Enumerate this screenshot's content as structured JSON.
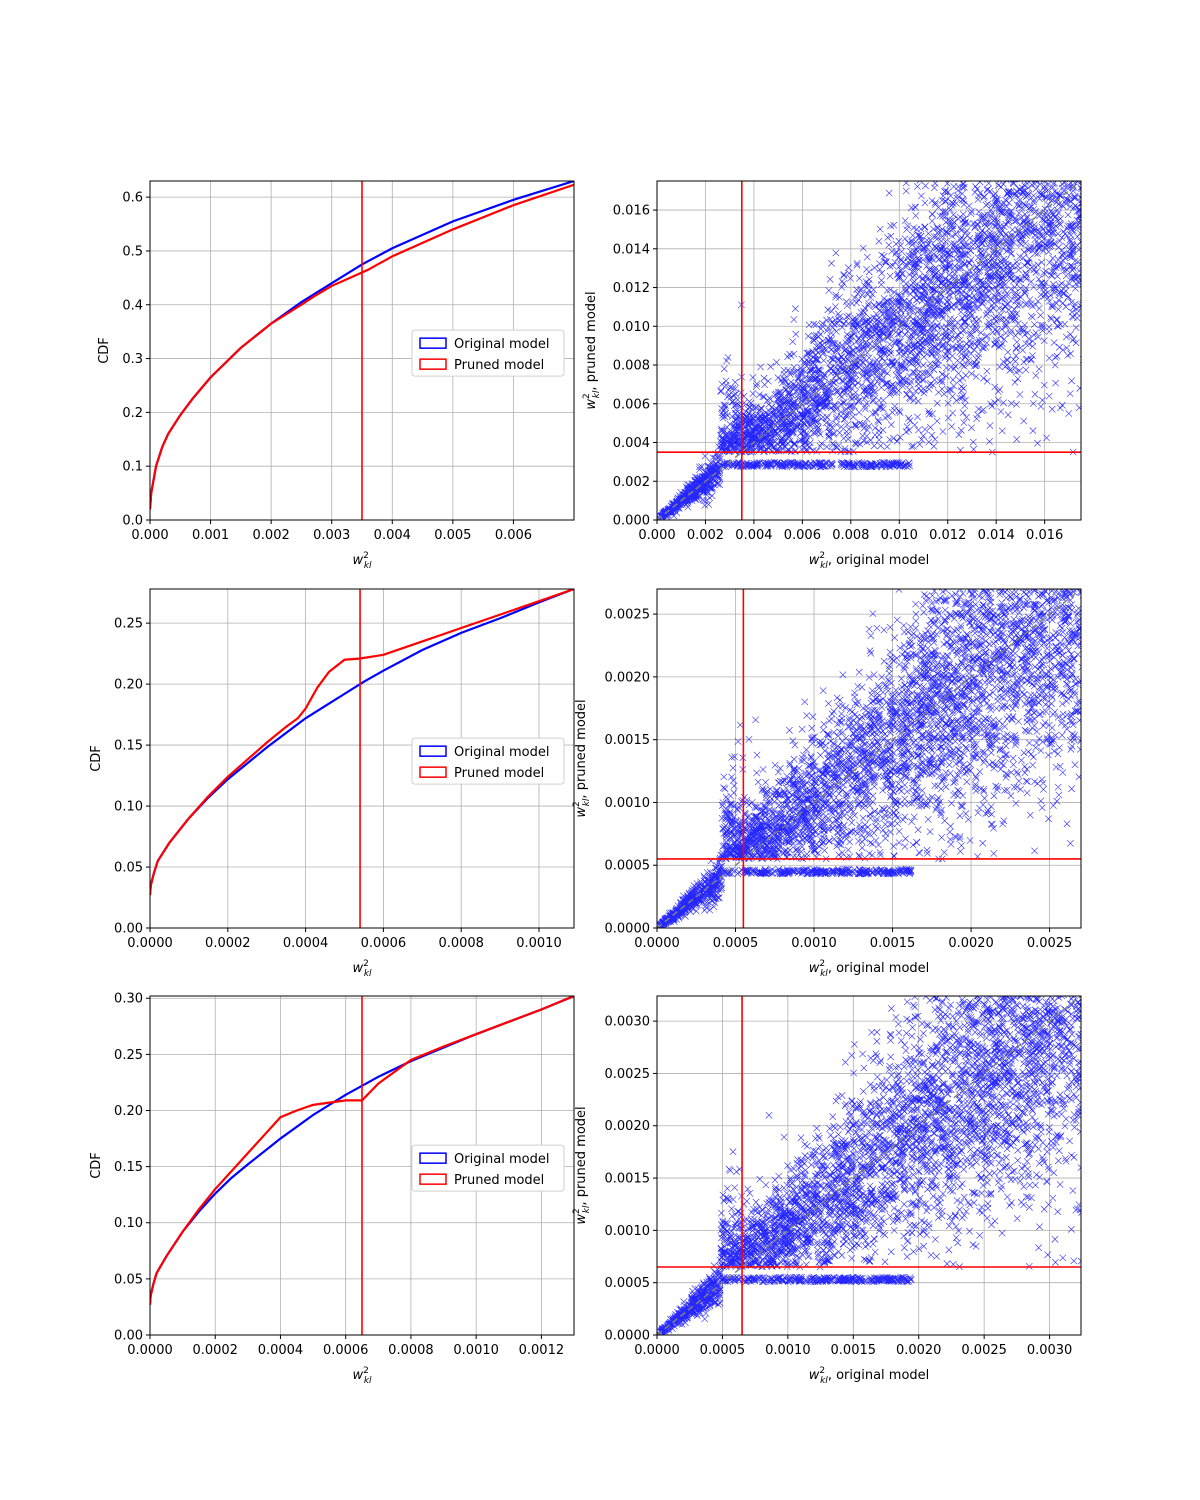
{
  "colors": {
    "original": "#0000ff",
    "pruned": "#ff0000",
    "threshold": "#ff0000",
    "diagonal": "#808080",
    "grid": "#b0b0b0"
  },
  "legend": {
    "original": "Original model",
    "pruned": "Pruned model"
  },
  "labels": {
    "cdf_ylabel": "CDF",
    "cdf_xlabel": "w_{kl}^2",
    "scatter_xlabel": "w_{kl}^2, original model",
    "scatter_ylabel": "w_{kl}^2, pruned model"
  },
  "chart_data": [
    {
      "type": "line",
      "legend_position": "center-right",
      "grid": true,
      "xlim": [
        0,
        0.007
      ],
      "ylim": [
        0,
        0.63
      ],
      "threshold_x": 0.0035,
      "xticks": [
        0.0,
        0.001,
        0.002,
        0.003,
        0.004,
        0.005,
        0.006
      ],
      "yticks": [
        0.0,
        0.1,
        0.2,
        0.3,
        0.4,
        0.5,
        0.6
      ],
      "xdec": 3,
      "ydec": 1,
      "series": [
        {
          "name": "Original model",
          "x": [
            0,
            2e-05,
            0.0001,
            0.0002,
            0.0003,
            0.0005,
            0.0007,
            0.001,
            0.0015,
            0.002,
            0.0025,
            0.003,
            0.0035,
            0.004,
            0.005,
            0.006,
            0.007
          ],
          "y": [
            0.02,
            0.05,
            0.1,
            0.135,
            0.16,
            0.195,
            0.225,
            0.265,
            0.32,
            0.365,
            0.405,
            0.44,
            0.475,
            0.505,
            0.555,
            0.595,
            0.63
          ]
        },
        {
          "name": "Pruned model",
          "x": [
            0,
            2e-05,
            0.0001,
            0.0002,
            0.0003,
            0.0005,
            0.0007,
            0.001,
            0.0015,
            0.002,
            0.0025,
            0.0027,
            0.003,
            0.0033,
            0.0035,
            0.0036,
            0.004,
            0.005,
            0.006,
            0.007
          ],
          "y": [
            0.02,
            0.05,
            0.1,
            0.135,
            0.16,
            0.195,
            0.225,
            0.265,
            0.32,
            0.365,
            0.4,
            0.415,
            0.435,
            0.45,
            0.46,
            0.465,
            0.49,
            0.54,
            0.585,
            0.623
          ]
        }
      ]
    },
    {
      "type": "scatter",
      "grid": true,
      "xlim": [
        0,
        0.0175
      ],
      "ylim": [
        0,
        0.0175
      ],
      "threshold": 0.0035,
      "xticks": [
        0.0,
        0.002,
        0.004,
        0.006,
        0.008,
        0.01,
        0.012,
        0.014,
        0.016
      ],
      "yticks": [
        0.0,
        0.002,
        0.004,
        0.006,
        0.008,
        0.01,
        0.012,
        0.014,
        0.016
      ],
      "xdec": 3,
      "ydec": 3,
      "marker": "x",
      "point_count_estimate": 5000,
      "diagonal": true
    },
    {
      "type": "line",
      "legend_position": "center-right",
      "grid": true,
      "xlim": [
        0,
        0.00109
      ],
      "ylim": [
        0,
        0.278
      ],
      "threshold_x": 0.00054,
      "xticks": [
        0.0,
        0.0002,
        0.0004,
        0.0006,
        0.0008,
        0.001
      ],
      "yticks": [
        0.0,
        0.05,
        0.1,
        0.15,
        0.2,
        0.25
      ],
      "xdec": 4,
      "ydec": 2,
      "series": [
        {
          "name": "Original model",
          "x": [
            0,
            2e-06,
            1e-05,
            2e-05,
            5e-05,
            0.0001,
            0.00015,
            0.0002,
            0.00025,
            0.0003,
            0.00035,
            0.0004,
            0.00045,
            0.0005,
            0.00055,
            0.0006,
            0.0007,
            0.0008,
            0.0009,
            0.001,
            0.00109
          ],
          "y": [
            0.027,
            0.035,
            0.045,
            0.055,
            0.07,
            0.09,
            0.107,
            0.122,
            0.135,
            0.148,
            0.16,
            0.172,
            0.182,
            0.192,
            0.202,
            0.211,
            0.228,
            0.242,
            0.254,
            0.267,
            0.278
          ]
        },
        {
          "name": "Pruned model",
          "x": [
            0,
            2e-06,
            1e-05,
            2e-05,
            5e-05,
            0.0001,
            0.00015,
            0.0002,
            0.00025,
            0.0003,
            0.00035,
            0.00038,
            0.0004,
            0.00043,
            0.00046,
            0.0005,
            0.00054,
            0.0006,
            0.0007,
            0.0008,
            0.0009,
            0.001,
            0.00109
          ],
          "y": [
            0.027,
            0.035,
            0.045,
            0.055,
            0.07,
            0.09,
            0.108,
            0.124,
            0.138,
            0.152,
            0.165,
            0.172,
            0.18,
            0.197,
            0.21,
            0.22,
            0.221,
            0.224,
            0.235,
            0.246,
            0.257,
            0.268,
            0.278
          ]
        }
      ]
    },
    {
      "type": "scatter",
      "grid": true,
      "xlim": [
        0,
        0.0027
      ],
      "ylim": [
        0,
        0.0027
      ],
      "threshold": 0.00055,
      "xticks": [
        0.0,
        0.0005,
        0.001,
        0.0015,
        0.002,
        0.0025
      ],
      "yticks": [
        0.0,
        0.0005,
        0.001,
        0.0015,
        0.002,
        0.0025
      ],
      "xdec": 4,
      "ydec": 4,
      "marker": "x",
      "point_count_estimate": 5000,
      "diagonal": true
    },
    {
      "type": "line",
      "legend_position": "center-right",
      "grid": true,
      "xlim": [
        0,
        0.0013
      ],
      "ylim": [
        0,
        0.302
      ],
      "threshold_x": 0.00065,
      "xticks": [
        0.0,
        0.0002,
        0.0004,
        0.0006,
        0.0008,
        0.001,
        0.0012
      ],
      "yticks": [
        0.0,
        0.05,
        0.1,
        0.15,
        0.2,
        0.25,
        0.3
      ],
      "xdec": 4,
      "ydec": 2,
      "series": [
        {
          "name": "Original model",
          "x": [
            0,
            2e-06,
            1e-05,
            2e-05,
            5e-05,
            0.0001,
            0.00015,
            0.0002,
            0.00025,
            0.0003,
            0.0004,
            0.0005,
            0.0006,
            0.0007,
            0.0008,
            0.0009,
            0.001,
            0.0011,
            0.0012,
            0.0013
          ],
          "y": [
            0.027,
            0.035,
            0.045,
            0.055,
            0.07,
            0.092,
            0.11,
            0.126,
            0.14,
            0.152,
            0.175,
            0.196,
            0.214,
            0.23,
            0.244,
            0.256,
            0.268,
            0.279,
            0.29,
            0.302
          ]
        },
        {
          "name": "Pruned model",
          "x": [
            0,
            2e-06,
            1e-05,
            2e-05,
            5e-05,
            0.0001,
            0.00015,
            0.0002,
            0.00025,
            0.0003,
            0.00035,
            0.0004,
            0.00045,
            0.0005,
            0.0006,
            0.00065,
            0.0007,
            0.0008,
            0.0009,
            0.001,
            0.0011,
            0.0012,
            0.0013
          ],
          "y": [
            0.027,
            0.035,
            0.045,
            0.055,
            0.07,
            0.092,
            0.112,
            0.13,
            0.146,
            0.162,
            0.178,
            0.194,
            0.2,
            0.205,
            0.209,
            0.209,
            0.224,
            0.245,
            0.257,
            0.268,
            0.279,
            0.29,
            0.302
          ]
        }
      ]
    },
    {
      "type": "scatter",
      "grid": true,
      "xlim": [
        0,
        0.00324
      ],
      "ylim": [
        0,
        0.00324
      ],
      "threshold": 0.00065,
      "xticks": [
        0.0,
        0.0005,
        0.001,
        0.0015,
        0.002,
        0.0025,
        0.003
      ],
      "yticks": [
        0.0,
        0.0005,
        0.001,
        0.0015,
        0.002,
        0.0025,
        0.003
      ],
      "xdec": 4,
      "ydec": 4,
      "marker": "x",
      "point_count_estimate": 5000,
      "diagonal": true
    }
  ]
}
